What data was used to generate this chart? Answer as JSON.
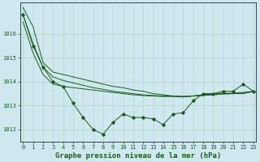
{
  "title": "Graphe pression niveau de la mer (hPa)",
  "background_color": "#cfe8f0",
  "grid_color": "#b0d8c8",
  "line_color": "#1a5c1a",
  "x": [
    0,
    1,
    2,
    3,
    4,
    5,
    6,
    7,
    8,
    9,
    10,
    11,
    12,
    13,
    14,
    15,
    16,
    17,
    18,
    19,
    20,
    21,
    22,
    23
  ],
  "y_measured": [
    1016.8,
    1015.5,
    1014.6,
    1014.0,
    1013.8,
    1013.1,
    1012.5,
    1012.0,
    1011.8,
    1012.3,
    1012.65,
    1012.5,
    1012.5,
    1012.45,
    1012.2,
    1012.65,
    1012.7,
    1013.2,
    1013.5,
    1013.5,
    1013.6,
    1013.6,
    1013.9,
    1013.6
  ],
  "y_smooth1": [
    1017.1,
    1016.3,
    1014.8,
    1014.4,
    1014.3,
    1014.2,
    1014.1,
    1014.0,
    1013.9,
    1013.8,
    1013.75,
    1013.65,
    1013.6,
    1013.5,
    1013.45,
    1013.4,
    1013.38,
    1013.4,
    1013.45,
    1013.48,
    1013.5,
    1013.5,
    1013.5,
    1013.6
  ],
  "y_smooth2": [
    1016.8,
    1015.6,
    1014.6,
    1014.2,
    1014.05,
    1013.95,
    1013.85,
    1013.75,
    1013.68,
    1013.6,
    1013.55,
    1013.5,
    1013.45,
    1013.42,
    1013.4,
    1013.4,
    1013.38,
    1013.4,
    1013.45,
    1013.5,
    1013.52,
    1013.52,
    1013.55,
    1013.6
  ],
  "y_smooth3": [
    1016.5,
    1015.2,
    1014.3,
    1013.9,
    1013.8,
    1013.75,
    1013.7,
    1013.65,
    1013.6,
    1013.55,
    1013.5,
    1013.45,
    1013.42,
    1013.4,
    1013.38,
    1013.38,
    1013.36,
    1013.4,
    1013.42,
    1013.45,
    1013.48,
    1013.5,
    1013.52,
    1013.58
  ],
  "ylim": [
    1011.5,
    1017.3
  ],
  "xlim": [
    -0.3,
    23.3
  ],
  "yticks": [
    1012,
    1013,
    1014,
    1015,
    1016
  ],
  "xticks": [
    0,
    1,
    2,
    3,
    4,
    5,
    6,
    7,
    8,
    9,
    10,
    11,
    12,
    13,
    14,
    15,
    16,
    17,
    18,
    19,
    20,
    21,
    22,
    23
  ],
  "title_fontsize": 6.5,
  "tick_fontsize": 5.0,
  "ylabel_fontsize": 5.5
}
